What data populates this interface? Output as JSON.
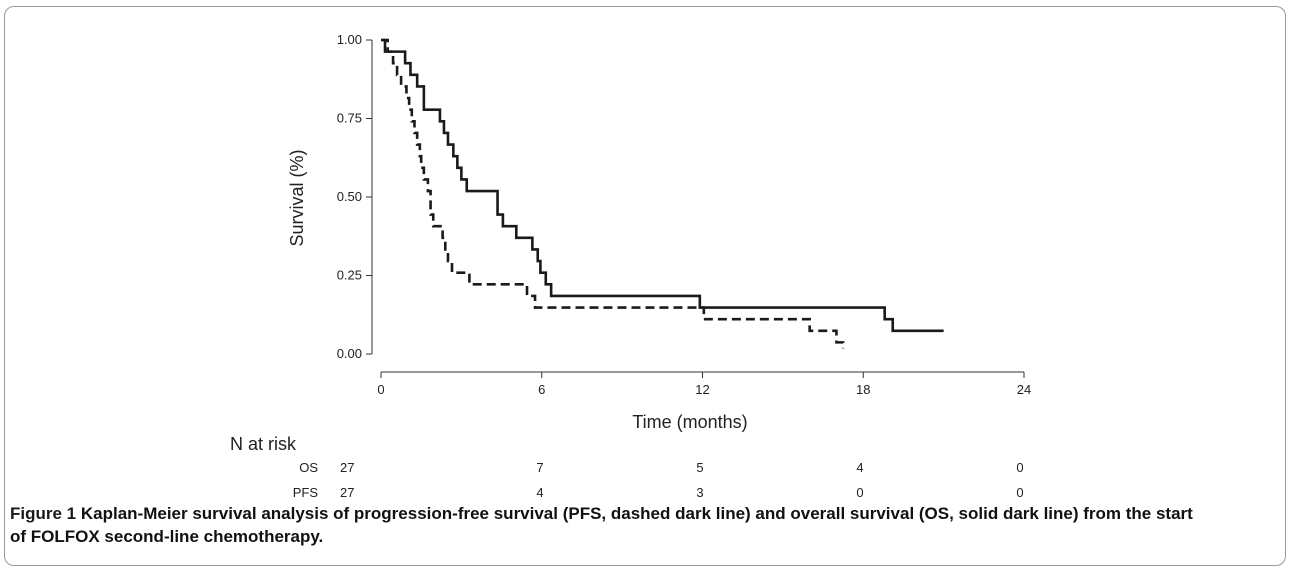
{
  "chart_data": {
    "type": "line",
    "title": "",
    "xlabel": "Time (months)",
    "ylabel": "Survival (%)",
    "xlim": [
      0,
      24
    ],
    "ylim": [
      0,
      1
    ],
    "x_ticks": [
      0,
      6,
      12,
      18,
      24
    ],
    "x_tick_labels": [
      "0",
      "6",
      "12",
      "18",
      "24"
    ],
    "y_ticks": [
      0,
      0.25,
      0.5,
      0.75,
      1.0
    ],
    "y_tick_labels": [
      "0.00",
      "0.25",
      "0.50",
      "0.75",
      "1.00"
    ],
    "series": [
      {
        "name": "OS",
        "style": "solid",
        "color": "#1a1a1a",
        "steps": [
          [
            0,
            1.0
          ],
          [
            0.15,
            0.963
          ],
          [
            0.9,
            0.926
          ],
          [
            1.1,
            0.889
          ],
          [
            1.35,
            0.852
          ],
          [
            1.6,
            0.778
          ],
          [
            2.2,
            0.741
          ],
          [
            2.35,
            0.704
          ],
          [
            2.5,
            0.667
          ],
          [
            2.7,
            0.63
          ],
          [
            2.85,
            0.593
          ],
          [
            3.0,
            0.556
          ],
          [
            3.2,
            0.519
          ],
          [
            4.35,
            0.444
          ],
          [
            4.55,
            0.407
          ],
          [
            5.05,
            0.37
          ],
          [
            5.65,
            0.333
          ],
          [
            5.85,
            0.296
          ],
          [
            5.95,
            0.259
          ],
          [
            6.15,
            0.222
          ],
          [
            6.35,
            0.185
          ],
          [
            11.9,
            0.148
          ],
          [
            18.8,
            0.111
          ],
          [
            19.1,
            0.074
          ],
          [
            21.0,
            0.074
          ]
        ]
      },
      {
        "name": "PFS",
        "style": "dashed",
        "color": "#1a1a1a",
        "steps": [
          [
            0,
            1.0
          ],
          [
            0.25,
            0.963
          ],
          [
            0.45,
            0.926
          ],
          [
            0.6,
            0.889
          ],
          [
            0.75,
            0.852
          ],
          [
            0.95,
            0.815
          ],
          [
            1.05,
            0.778
          ],
          [
            1.15,
            0.741
          ],
          [
            1.25,
            0.704
          ],
          [
            1.35,
            0.667
          ],
          [
            1.45,
            0.63
          ],
          [
            1.5,
            0.593
          ],
          [
            1.6,
            0.556
          ],
          [
            1.75,
            0.519
          ],
          [
            1.85,
            0.444
          ],
          [
            1.95,
            0.407
          ],
          [
            2.3,
            0.37
          ],
          [
            2.4,
            0.333
          ],
          [
            2.5,
            0.296
          ],
          [
            2.65,
            0.259
          ],
          [
            3.3,
            0.222
          ],
          [
            5.45,
            0.185
          ],
          [
            5.75,
            0.148
          ],
          [
            12.05,
            0.111
          ],
          [
            16.0,
            0.074
          ],
          [
            17.0,
            0.037
          ],
          [
            17.25,
            0.018
          ]
        ]
      }
    ]
  },
  "risk_table": {
    "title": "N at risk",
    "rows": [
      {
        "label": "OS",
        "values": [
          "27",
          "7",
          "5",
          "4",
          "0"
        ]
      },
      {
        "label": "PFS",
        "values": [
          "27",
          "4",
          "3",
          "0",
          "0"
        ]
      }
    ]
  },
  "caption": {
    "figure_label": "Figure 1",
    "text": "Kaplan-Meier survival analysis of progression-free survival (PFS, dashed dark line) and overall survival (OS, solid dark line) from the start of FOLFOX second-line chemotherapy."
  }
}
